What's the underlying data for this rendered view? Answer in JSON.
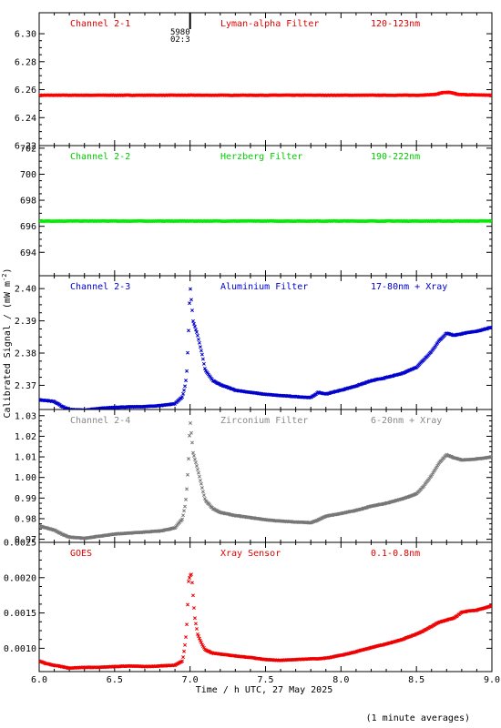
{
  "chart_data": [
    {
      "type": "scatter",
      "panel_label": "Channel 2-1",
      "filter_label": "Lyman-alpha Filter",
      "band_label": "120-123nm",
      "label_color": "#e00000",
      "marker_color": "#ff0000",
      "ylim": [
        6.22,
        6.315
      ],
      "yticks": [
        6.22,
        6.24,
        6.26,
        6.28,
        6.3
      ],
      "ytick_labels": [
        "6.22",
        "6.24",
        "6.26",
        "6.28",
        "6.30"
      ],
      "series": [
        {
          "x": [
            6.0,
            6.5,
            7.0,
            7.5,
            8.0,
            8.5,
            8.62,
            8.68,
            8.72,
            8.78,
            9.0
          ],
          "y": [
            6.256,
            6.256,
            6.256,
            6.256,
            6.256,
            6.256,
            6.2565,
            6.258,
            6.258,
            6.2565,
            6.256
          ]
        }
      ],
      "annotation": {
        "x": 7.0,
        "lines": [
          "5980",
          "02:3"
        ]
      }
    },
    {
      "type": "scatter",
      "panel_label": "Channel 2-2",
      "filter_label": "Herzberg Filter",
      "band_label": "190-222nm",
      "label_color": "#00cc00",
      "marker_color": "#00ee00",
      "ylim": [
        692.2,
        702.2
      ],
      "yticks": [
        694,
        696,
        698,
        700,
        702
      ],
      "ytick_labels": [
        "694",
        "696",
        "698",
        "700",
        "702"
      ],
      "series": [
        {
          "x": [
            6.0,
            6.5,
            7.0,
            7.5,
            8.0,
            8.5,
            9.0
          ],
          "y": [
            696.4,
            696.4,
            696.4,
            696.4,
            696.4,
            696.4,
            696.4
          ]
        }
      ]
    },
    {
      "type": "scatter",
      "panel_label": "Channel 2-3",
      "filter_label": "Aluminium Filter",
      "band_label": "17-80nm + Xray",
      "label_color": "#0000cc",
      "marker_color": "#0000cc",
      "ylim": [
        2.3625,
        2.404
      ],
      "yticks": [
        2.37,
        2.38,
        2.39,
        2.4
      ],
      "ytick_labels": [
        "2.37",
        "2.38",
        "2.39",
        "2.40"
      ],
      "series": [
        {
          "x": [
            6.0,
            6.1,
            6.15,
            6.2,
            6.3,
            6.4,
            6.5,
            6.6,
            6.7,
            6.8,
            6.9,
            6.95,
            6.97,
            6.98,
            6.99,
            7.0,
            7.02,
            7.05,
            7.08,
            7.1,
            7.15,
            7.2,
            7.3,
            7.4,
            7.5,
            7.6,
            7.7,
            7.8,
            7.85,
            7.9,
            8.0,
            8.1,
            8.2,
            8.3,
            8.4,
            8.5,
            8.55,
            8.6,
            8.65,
            8.7,
            8.75,
            8.8,
            8.9,
            9.0
          ],
          "y": [
            2.3655,
            2.365,
            2.3635,
            2.3625,
            2.3623,
            2.3628,
            2.3632,
            2.3633,
            2.3634,
            2.3637,
            2.3643,
            2.3665,
            2.3705,
            2.3755,
            2.387,
            2.401,
            2.39,
            2.3855,
            2.3795,
            2.3748,
            2.3715,
            2.3702,
            2.3685,
            2.3678,
            2.3672,
            2.3668,
            2.3665,
            2.3662,
            2.3678,
            2.3673,
            2.3685,
            2.3698,
            2.3714,
            2.3724,
            2.3736,
            2.3756,
            2.378,
            2.3805,
            2.3838,
            2.3862,
            2.3855,
            2.386,
            2.3868,
            2.388
          ]
        }
      ]
    },
    {
      "type": "scatter",
      "panel_label": "Channel 2-4",
      "filter_label": "Zirconium Filter",
      "band_label": "6-20nm + Xray",
      "label_color": "#888888",
      "marker_color": "#777777",
      "ylim": [
        0.9685,
        1.033
      ],
      "yticks": [
        0.97,
        0.98,
        0.99,
        1.0,
        1.01,
        1.02,
        1.03
      ],
      "ytick_labels": [
        "0.97",
        "0.98",
        "0.99",
        "1.00",
        "1.01",
        "1.02",
        "1.03"
      ],
      "series": [
        {
          "x": [
            6.0,
            6.1,
            6.15,
            6.2,
            6.3,
            6.4,
            6.5,
            6.6,
            6.7,
            6.8,
            6.9,
            6.95,
            6.97,
            6.98,
            6.99,
            7.0,
            7.02,
            7.05,
            7.08,
            7.1,
            7.15,
            7.2,
            7.3,
            7.4,
            7.5,
            7.6,
            7.7,
            7.8,
            7.85,
            7.9,
            8.0,
            8.1,
            8.2,
            8.3,
            8.4,
            8.5,
            8.55,
            8.6,
            8.65,
            8.7,
            8.75,
            8.8,
            8.9,
            9.0
          ],
          "y": [
            0.9765,
            0.9745,
            0.9725,
            0.971,
            0.9705,
            0.9715,
            0.9725,
            0.973,
            0.9735,
            0.974,
            0.9755,
            0.98,
            0.9875,
            0.996,
            1.009,
            1.028,
            1.012,
            1.004,
            0.995,
            0.989,
            0.985,
            0.983,
            0.9815,
            0.9805,
            0.9795,
            0.9788,
            0.9784,
            0.978,
            0.9795,
            0.9812,
            0.9825,
            0.984,
            0.986,
            0.9875,
            0.9895,
            0.992,
            0.996,
            1.001,
            1.007,
            1.011,
            1.0095,
            1.0085,
            1.009,
            1.01
          ]
        }
      ]
    },
    {
      "type": "scatter",
      "panel_label": "GOES",
      "filter_label": "Xray Sensor",
      "band_label": "0.1-0.8nm",
      "label_color": "#e00000",
      "marker_color": "#ee0000",
      "ylim": [
        0.00067,
        0.0025
      ],
      "yticks": [
        0.001,
        0.0015,
        0.002,
        0.0025
      ],
      "ytick_labels": [
        "0.0010",
        "0.0015",
        "0.0020",
        "0.0025"
      ],
      "series": [
        {
          "x": [
            6.0,
            6.05,
            6.1,
            6.15,
            6.2,
            6.3,
            6.4,
            6.5,
            6.6,
            6.7,
            6.8,
            6.9,
            6.95,
            6.97,
            6.98,
            6.99,
            7.0,
            7.01,
            7.02,
            7.03,
            7.05,
            7.08,
            7.1,
            7.15,
            7.2,
            7.3,
            7.4,
            7.5,
            7.6,
            7.7,
            7.8,
            7.85,
            7.9,
            8.0,
            8.1,
            8.2,
            8.3,
            8.4,
            8.5,
            8.55,
            8.6,
            8.65,
            8.7,
            8.75,
            8.8,
            8.85,
            8.9,
            9.0
          ],
          "y": [
            0.00082,
            0.00078,
            0.00076,
            0.00074,
            0.00072,
            0.00073,
            0.00073,
            0.00074,
            0.00075,
            0.00074,
            0.00075,
            0.00076,
            0.00082,
            0.0011,
            0.0014,
            0.00195,
            0.00203,
            0.00205,
            0.00175,
            0.00145,
            0.0012,
            0.00105,
            0.00098,
            0.00093,
            0.00092,
            0.00089,
            0.00087,
            0.00084,
            0.00083,
            0.00084,
            0.00085,
            0.00085,
            0.00086,
            0.0009,
            0.00095,
            0.00101,
            0.00106,
            0.00112,
            0.0012,
            0.00125,
            0.00131,
            0.00137,
            0.0014,
            0.00143,
            0.00151,
            0.00153,
            0.00154,
            0.0016
          ]
        }
      ]
    }
  ],
  "x_axis": {
    "xlim": [
      6.0,
      9.0
    ],
    "ticks": [
      6.0,
      6.5,
      7.0,
      7.5,
      8.0,
      8.5,
      9.0
    ],
    "tick_labels": [
      "6.0",
      "6.5",
      "7.0",
      "7.5",
      "8.0",
      "8.5",
      "9.0"
    ],
    "xlabel": "Time / h UTC, 27 May 2025"
  },
  "ylabel": "Calibrated Signal / (mW m",
  "ylabel_superscript": "-2",
  "ylabel_close": ")",
  "footnote": "(1 minute averages)"
}
